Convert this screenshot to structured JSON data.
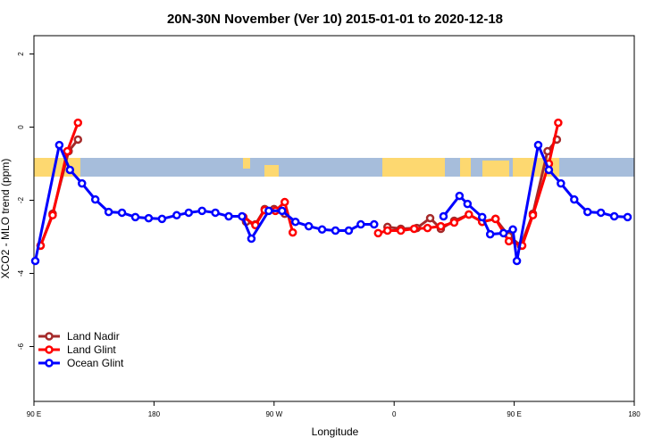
{
  "chart_data": {
    "type": "line",
    "title": "20N-30N November (Ver 10)   2015-01-01 to 2020-12-18",
    "x_label": "Longitude",
    "y_label": "XCO2 - MLO trend (ppm)",
    "xlim": [
      90,
      540
    ],
    "ylim": [
      -7.5,
      2.5
    ],
    "xticks": [
      {
        "value": 90,
        "label": "90 E"
      },
      {
        "value": 180,
        "label": "180"
      },
      {
        "value": 270,
        "label": "90 W"
      },
      {
        "value": 360,
        "label": "0"
      },
      {
        "value": 450,
        "label": "90 E"
      },
      {
        "value": 540,
        "label": "180"
      }
    ],
    "yticks": [
      2,
      0,
      -2,
      -4,
      -6
    ],
    "legend": "bottom-left",
    "series": [
      {
        "name": "Land Nadir",
        "color": "#a52a2a",
        "x": [
          95,
          104,
          116,
          123,
          200,
          249,
          256,
          263,
          270,
          278,
          320,
          355,
          365,
          377,
          387,
          395,
          405,
          416,
          426,
          436,
          446,
          455,
          464,
          475,
          482
        ],
        "values": [
          -3.24,
          -2.37,
          -0.66,
          -0.34,
          null,
          -2.59,
          -2.66,
          -2.24,
          -2.24,
          -2.37,
          null,
          -2.73,
          -2.78,
          -2.76,
          -2.49,
          -2.78,
          -2.56,
          -2.39,
          -2.59,
          -2.51,
          -2.98,
          -3.24,
          -2.37,
          -0.66,
          -0.34
        ]
      },
      {
        "name": "Land Glint",
        "color": "#ff0000",
        "x": [
          95,
          104,
          115,
          123,
          200,
          247,
          256,
          263,
          271,
          278,
          284,
          320,
          348,
          355,
          365,
          375,
          385,
          395,
          405,
          416,
          426,
          436,
          446,
          456,
          464,
          476,
          483
        ],
        "values": [
          -3.24,
          -2.41,
          -0.66,
          0.12,
          null,
          -2.46,
          -2.68,
          -2.27,
          -2.29,
          -2.05,
          -2.88,
          null,
          -2.9,
          -2.83,
          -2.83,
          -2.78,
          -2.76,
          -2.71,
          -2.61,
          -2.39,
          -2.59,
          -2.51,
          -3.12,
          -3.24,
          -2.41,
          -1.0,
          0.12
        ]
      },
      {
        "name": "Ocean Glint",
        "color": "#0000ff",
        "x": [
          91,
          109,
          117,
          126,
          136,
          146,
          156,
          166,
          176,
          186,
          197,
          206,
          216,
          226,
          236,
          246,
          253,
          266,
          276,
          286,
          296,
          306,
          316,
          326,
          335,
          345,
          370,
          397,
          409,
          415,
          426,
          432,
          442,
          449,
          452,
          468,
          476,
          485,
          495,
          505,
          515,
          525,
          535
        ],
        "values": [
          -3.66,
          -0.49,
          -1.17,
          -1.54,
          -1.98,
          -2.32,
          -2.34,
          -2.46,
          -2.49,
          -2.51,
          -2.41,
          -2.34,
          -2.29,
          -2.34,
          -2.44,
          -2.44,
          -3.05,
          -2.29,
          -2.29,
          -2.59,
          -2.71,
          -2.8,
          -2.83,
          -2.83,
          -2.66,
          -2.66,
          null,
          -2.44,
          -1.88,
          -2.1,
          -2.46,
          -2.93,
          -2.9,
          -2.8,
          -3.66,
          -0.49,
          -1.17,
          -1.54,
          -1.98,
          -2.32,
          -2.34,
          -2.44,
          -2.46
        ]
      }
    ]
  }
}
